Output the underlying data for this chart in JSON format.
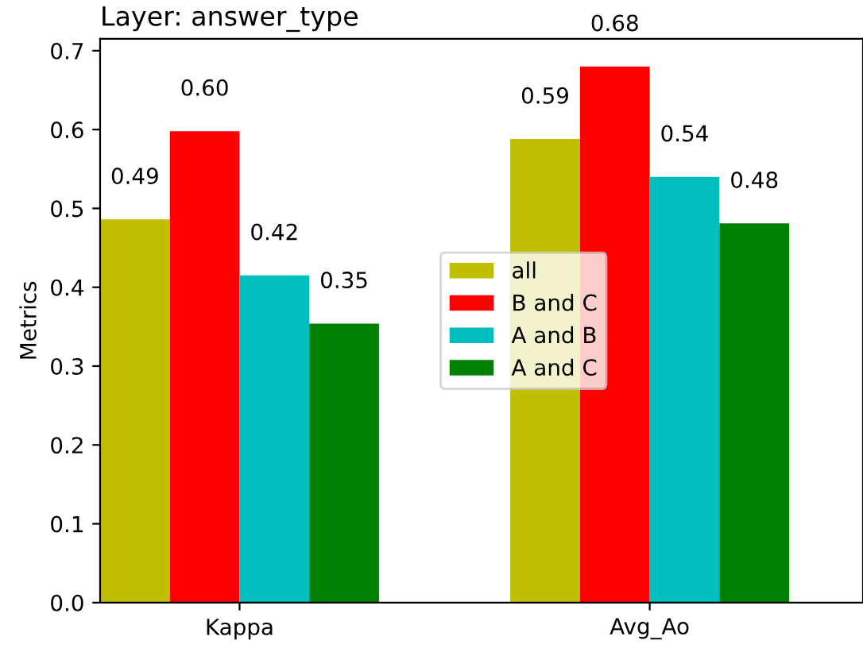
{
  "chart_data": {
    "type": "bar",
    "title": "Layer: answer_type",
    "ylabel": "Metrics",
    "categories": [
      "Kappa",
      "Avg_Ao"
    ],
    "series": [
      {
        "name": "all",
        "color": "#bfbf00",
        "values": [
          0.486,
          0.588
        ],
        "value_labels": [
          "0.49",
          "0.59"
        ]
      },
      {
        "name": "B and C",
        "color": "#ff0000",
        "values": [
          0.598,
          0.68
        ],
        "value_labels": [
          "0.60",
          "0.68"
        ]
      },
      {
        "name": "A and B",
        "color": "#00bfbf",
        "values": [
          0.415,
          0.54
        ],
        "value_labels": [
          "0.42",
          "0.54"
        ]
      },
      {
        "name": "A and C",
        "color": "#008000",
        "values": [
          0.354,
          0.481
        ],
        "value_labels": [
          "0.35",
          "0.48"
        ]
      }
    ],
    "ylim": [
      0,
      0.715
    ],
    "yticks": [
      {
        "value": 0,
        "label": "0.0"
      },
      0.1,
      0.2,
      0.3,
      0.4,
      0.5,
      0.6,
      0.7
    ],
    "grid": false,
    "legend": "center"
  }
}
